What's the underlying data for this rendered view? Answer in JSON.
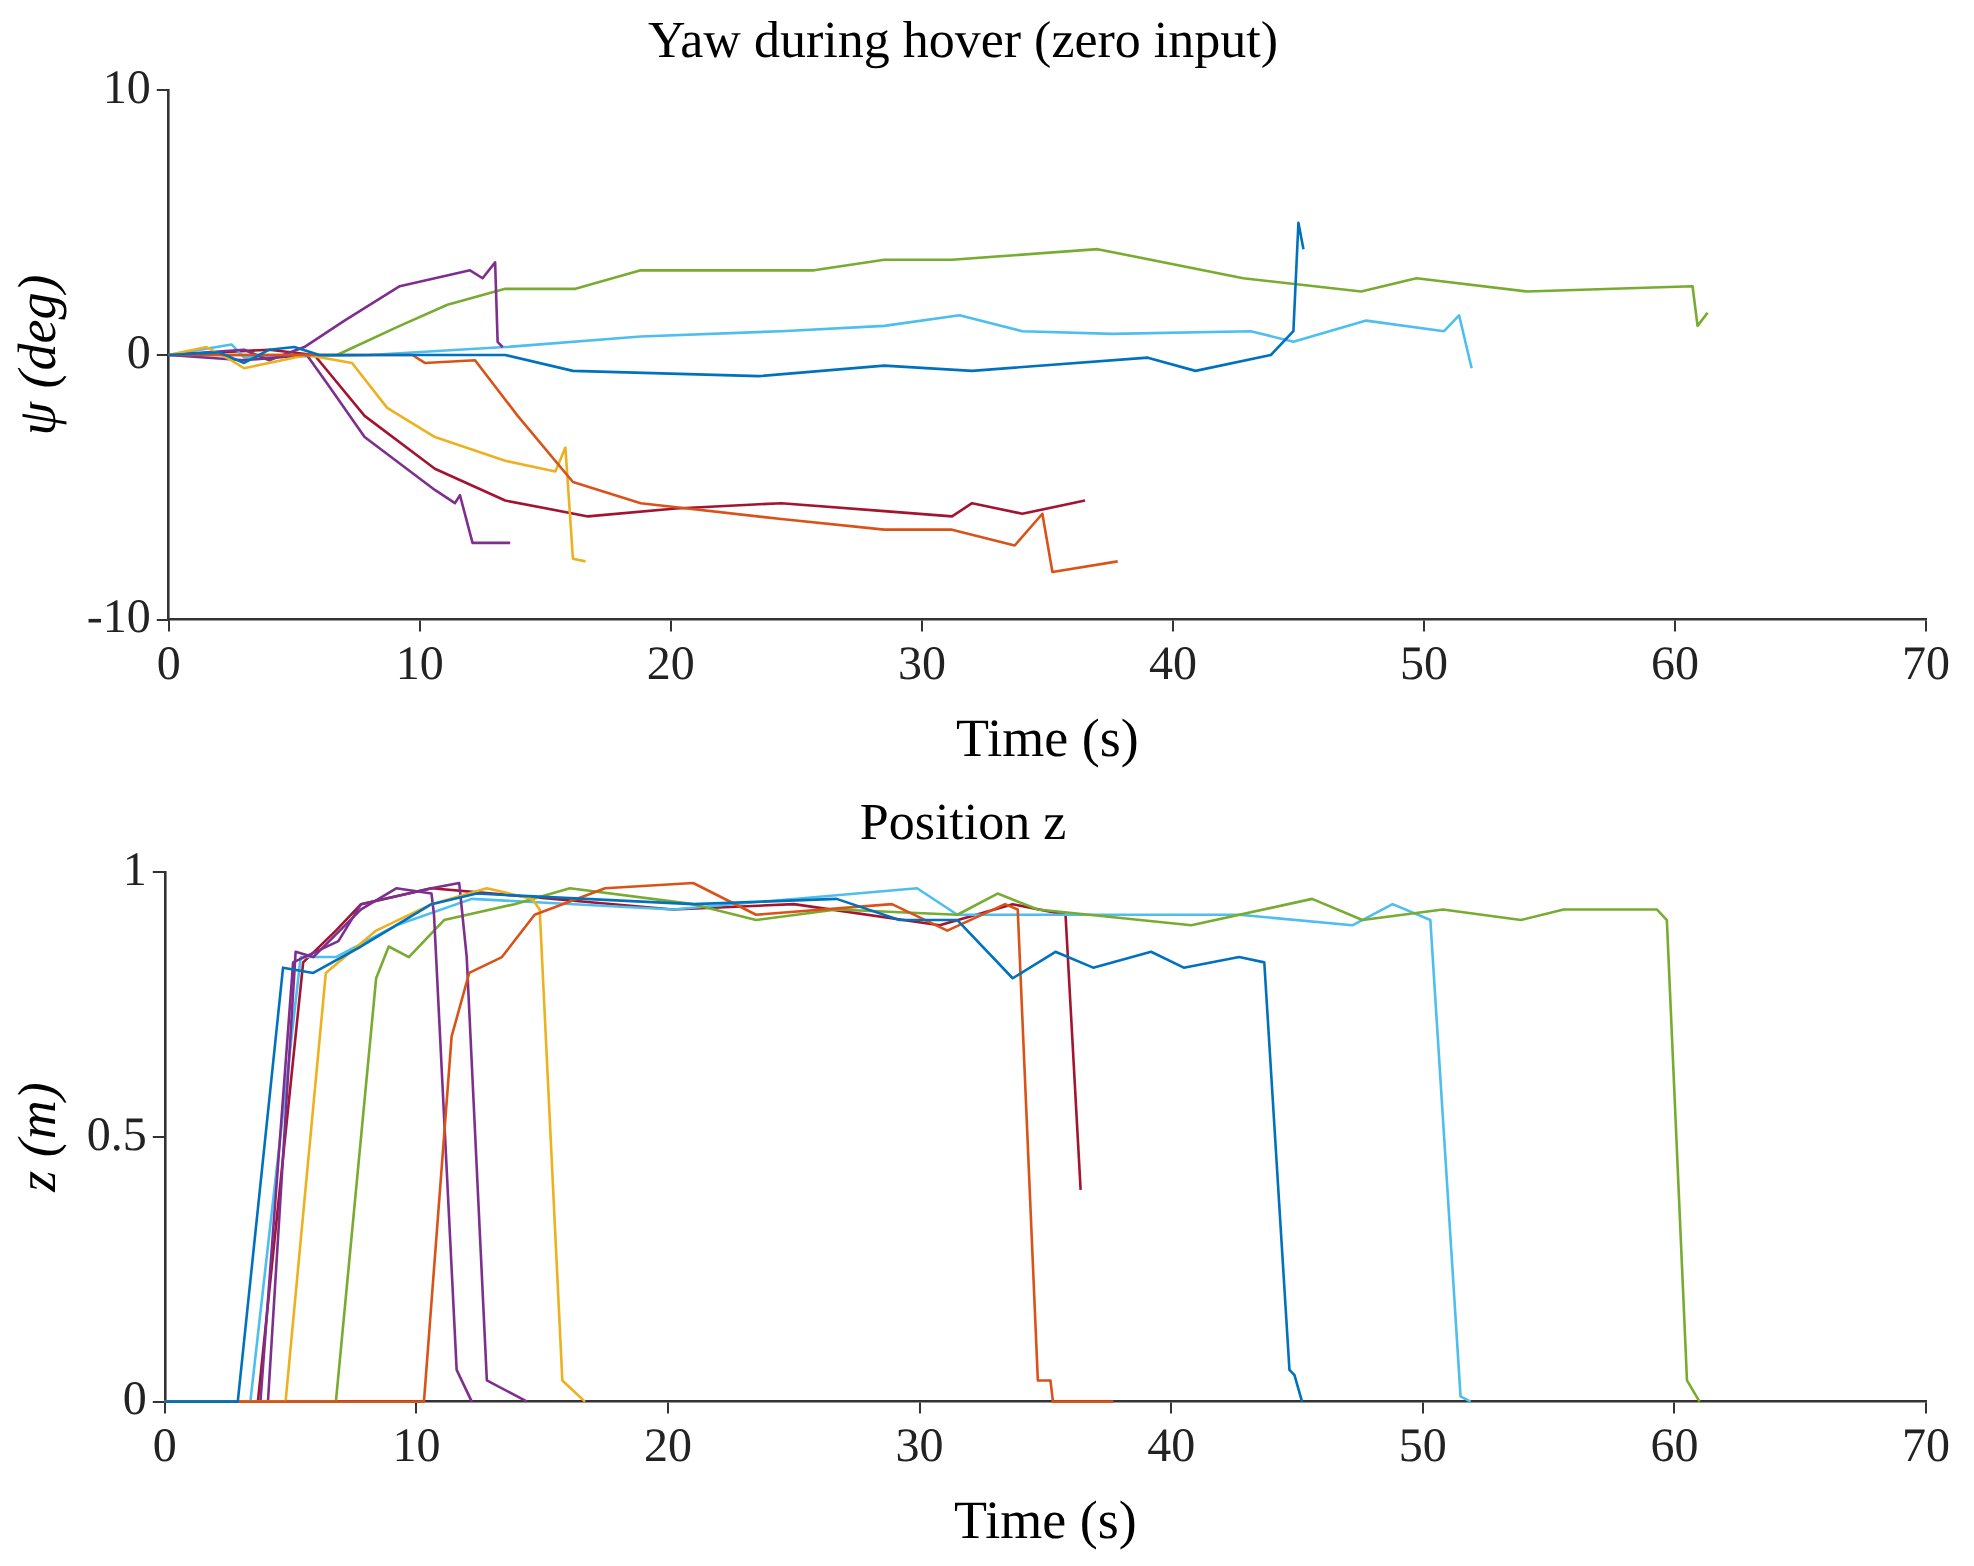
{
  "chart_data": [
    {
      "type": "line",
      "title": "Yaw during hover (zero input)",
      "xlabel": "Time (s)",
      "ylabel": "ψ (deg)",
      "xlim": [
        0,
        70
      ],
      "xticks": [
        0,
        10,
        20,
        30,
        40,
        50,
        60,
        70
      ],
      "ylim": [
        -10,
        10
      ],
      "yticks": [
        -10,
        0,
        10
      ],
      "grid": false,
      "legend": false,
      "series": [
        {
          "color": "#0072bd",
          "x": [
            0,
            2,
            3,
            4,
            5,
            6,
            10,
            13.4,
            16.1,
            23.5,
            28.5,
            32,
            39,
            40.9,
            43.9,
            44.8,
            45,
            45.2
          ],
          "values": [
            0,
            0.1,
            -0.3,
            0.2,
            0.3,
            0,
            0,
            0,
            -0.6,
            -0.8,
            -0.4,
            -0.6,
            -0.1,
            -0.6,
            0,
            0.9,
            5,
            4
          ]
        },
        {
          "color": "#d95319",
          "x": [
            0,
            5,
            9.7,
            10.2,
            12.2,
            13.9,
            16.1,
            18.8,
            24.4,
            28.5,
            31.2,
            33.7,
            34.8,
            35.2,
            37.8
          ],
          "values": [
            0,
            0,
            0,
            -0.3,
            -0.2,
            -2.3,
            -4.8,
            -5.6,
            -6.2,
            -6.6,
            -6.6,
            -7.2,
            -6,
            -8.2,
            -7.8
          ]
        },
        {
          "color": "#edb120",
          "x": [
            0,
            1.5,
            2.5,
            3,
            5.5,
            7.3,
            8.7,
            10.6,
            13.4,
            15.4,
            15.8,
            16.1,
            16.6
          ],
          "values": [
            0,
            0.3,
            -0.2,
            -0.5,
            0,
            -0.3,
            -2,
            -3.1,
            -4,
            -4.4,
            -3.5,
            -7.7,
            -7.8
          ]
        },
        {
          "color": "#7e2f8e",
          "x": [
            0,
            3,
            4,
            5.4,
            7,
            9.2,
            12,
            12.5,
            13,
            13.1,
            13.3
          ],
          "values": [
            0,
            0.2,
            -0.2,
            0.3,
            1.3,
            2.6,
            3.2,
            2.9,
            3.5,
            0.5,
            0.3
          ]
        },
        {
          "color": "#7e2f8e",
          "x": [
            0,
            3,
            5.5,
            6.4,
            7.8,
            10.6,
            11.4,
            11.6,
            12.1,
            13.6
          ],
          "values": [
            0,
            -0.2,
            0,
            -1.2,
            -3.1,
            -5.1,
            -5.6,
            -5.3,
            -7.1,
            -7.1
          ]
        },
        {
          "color": "#77ac30",
          "x": [
            0,
            6.7,
            9.2,
            11.1,
            13.4,
            16.2,
            18.8,
            25.7,
            28.5,
            31.2,
            37,
            42.8,
            47.5,
            49.7,
            54.1,
            60.7,
            60.9,
            61.3
          ],
          "values": [
            0,
            0,
            1.1,
            1.9,
            2.5,
            2.5,
            3.2,
            3.2,
            3.6,
            3.6,
            4,
            2.9,
            2.4,
            2.9,
            2.4,
            2.6,
            1.1,
            1.6
          ]
        },
        {
          "color": "#4dbeee",
          "x": [
            0,
            2.5,
            3,
            8,
            13.4,
            18.8,
            24.4,
            28.5,
            31.5,
            34,
            37.6,
            43.1,
            44.8,
            47.7,
            50.8,
            51.4,
            51.9
          ],
          "values": [
            0,
            0.4,
            -0.1,
            0,
            0.3,
            0.7,
            0.9,
            1.1,
            1.5,
            0.9,
            0.8,
            0.9,
            0.5,
            1.3,
            0.9,
            1.5,
            -0.5
          ]
        },
        {
          "color": "#a2142f",
          "x": [
            0,
            4,
            5.8,
            7.8,
            10.6,
            13.4,
            16.7,
            20.2,
            24.4,
            28.5,
            31.2,
            32,
            34,
            36.5
          ],
          "values": [
            0,
            0.2,
            0,
            -2.3,
            -4.3,
            -5.5,
            -6.1,
            -5.8,
            -5.6,
            -5.9,
            -6.1,
            -5.6,
            -6,
            -5.5
          ]
        }
      ]
    },
    {
      "type": "line",
      "title": "Position z",
      "xlabel": "Time (s)",
      "ylabel": "z (m)",
      "xlim": [
        0,
        70
      ],
      "xticks": [
        0,
        10,
        20,
        30,
        40,
        50,
        60,
        70
      ],
      "ylim": [
        0,
        1
      ],
      "yticks": [
        0,
        0.5,
        1
      ],
      "grid": false,
      "legend": false,
      "series": [
        {
          "color": "#0072bd",
          "x": [
            0,
            2.9,
            4.7,
            5.9,
            7.8,
            10.6,
            12.4,
            21,
            26.7,
            29.2,
            31.5,
            33.7,
            35.4,
            36.9,
            39.2,
            40.5,
            42.7,
            43.7,
            44.7,
            44.9,
            45.2
          ],
          "values": [
            0,
            0,
            0.82,
            0.81,
            0.86,
            0.94,
            0.96,
            0.94,
            0.95,
            0.91,
            0.91,
            0.8,
            0.85,
            0.82,
            0.85,
            0.82,
            0.84,
            0.83,
            0.06,
            0.05,
            0
          ]
        },
        {
          "color": "#d95319",
          "x": [
            0,
            10.3,
            11.4,
            12.1,
            13.4,
            14.7,
            17.5,
            21,
            23.5,
            28.9,
            31.1,
            33.4,
            33.9,
            34.7,
            35.2,
            35.3,
            37.7
          ],
          "values": [
            0,
            0,
            0.69,
            0.81,
            0.84,
            0.92,
            0.97,
            0.98,
            0.92,
            0.94,
            0.89,
            0.94,
            0.93,
            0.04,
            0.04,
            0,
            0
          ]
        },
        {
          "color": "#edb120",
          "x": [
            0,
            4.8,
            6.4,
            8.4,
            10.6,
            12.8,
            14.6,
            14.9,
            15.8,
            16.7
          ],
          "values": [
            0,
            0,
            0.81,
            0.89,
            0.94,
            0.97,
            0.95,
            0.93,
            0.04,
            0
          ]
        },
        {
          "color": "#7e2f8e",
          "x": [
            0,
            4.1,
            5.2,
            5.9,
            7.8,
            9.2,
            10.6,
            10.7,
            11.6,
            12.2
          ],
          "values": [
            0,
            0,
            0.85,
            0.84,
            0.93,
            0.97,
            0.96,
            0.92,
            0.06,
            0
          ]
        },
        {
          "color": "#7e2f8e",
          "x": [
            0,
            3.8,
            5.1,
            6.9,
            7.8,
            10.6,
            11.7,
            12,
            12.8,
            14.4
          ],
          "values": [
            0,
            0,
            0.83,
            0.87,
            0.94,
            0.97,
            0.98,
            0.84,
            0.04,
            0
          ]
        },
        {
          "color": "#77ac30",
          "x": [
            0,
            6.8,
            8.4,
            8.9,
            9.7,
            11.1,
            13.9,
            16.1,
            21,
            23.5,
            26.7,
            31.5,
            33.1,
            34.7,
            40.8,
            45.6,
            47.6,
            50.8,
            53.9,
            55.6,
            59.3,
            59.7,
            60.5,
            61
          ],
          "values": [
            0,
            0,
            0.8,
            0.86,
            0.84,
            0.91,
            0.94,
            0.97,
            0.94,
            0.91,
            0.93,
            0.92,
            0.96,
            0.93,
            0.9,
            0.95,
            0.91,
            0.93,
            0.91,
            0.93,
            0.93,
            0.91,
            0.04,
            0
          ]
        },
        {
          "color": "#4dbeee",
          "x": [
            0,
            3.4,
            5.4,
            6.8,
            9.2,
            12.2,
            20.2,
            29.9,
            31.5,
            36.3,
            42.7,
            47.2,
            48.8,
            50.3,
            51.5,
            51.9
          ],
          "values": [
            0,
            0,
            0.84,
            0.84,
            0.9,
            0.95,
            0.93,
            0.97,
            0.92,
            0.92,
            0.92,
            0.9,
            0.94,
            0.91,
            0.01,
            0
          ]
        },
        {
          "color": "#a2142f",
          "x": [
            0,
            3.7,
            5.5,
            6.8,
            7.8,
            10.6,
            20.2,
            25,
            30.8,
            33.7,
            35.8,
            36.4
          ],
          "values": [
            0,
            0,
            0.83,
            0.89,
            0.94,
            0.97,
            0.93,
            0.94,
            0.9,
            0.94,
            0.92,
            0.4
          ]
        }
      ]
    }
  ]
}
